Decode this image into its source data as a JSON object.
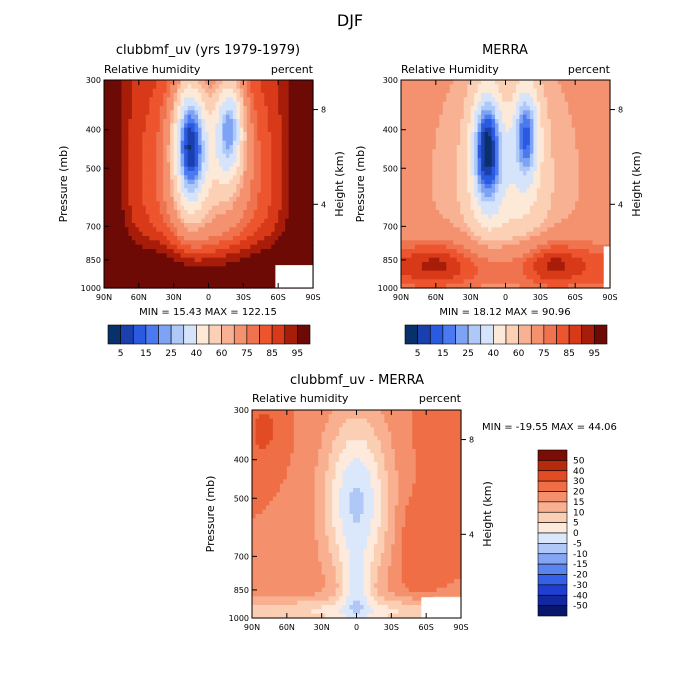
{
  "figure_title": "DJF",
  "chart_data": [
    {
      "type": "heatmap",
      "id": "p1",
      "title": "clubbmf_uv (yrs 1979-1979)",
      "subtitle_left": "Relative humidity",
      "subtitle_right": "percent",
      "xlabel": "",
      "ylabel": "Pressure (mb)",
      "y2label": "Height (km)",
      "x_ticks": [
        "90N",
        "60N",
        "30N",
        "0",
        "30S",
        "60S",
        "90S"
      ],
      "y_ticks": [
        "300",
        "400",
        "500",
        "700",
        "850",
        "1000"
      ],
      "y2_ticks": [
        "8",
        "4"
      ],
      "min_max": "MIN =   15.43   MAX =  122.15",
      "scale": "absolute",
      "color_levels": [
        5,
        15,
        25,
        40,
        60,
        75,
        85,
        95
      ]
    },
    {
      "type": "heatmap",
      "id": "p2",
      "title": "MERRA",
      "subtitle_left": "Relative Humidity",
      "subtitle_right": "percent",
      "xlabel": "",
      "ylabel": "Pressure (mb)",
      "y2label": "Height (km)",
      "x_ticks": [
        "90N",
        "60N",
        "30N",
        "0",
        "30S",
        "60S",
        "90S"
      ],
      "y_ticks": [
        "300",
        "400",
        "500",
        "700",
        "850",
        "1000"
      ],
      "y2_ticks": [
        "8",
        "4"
      ],
      "min_max": "MIN =   18.12   MAX =   90.96",
      "scale": "absolute",
      "color_levels": [
        5,
        15,
        25,
        40,
        60,
        75,
        85,
        95
      ]
    },
    {
      "type": "heatmap",
      "id": "p3",
      "title": "clubbmf_uv - MERRA",
      "subtitle_left": "Relative humidity",
      "subtitle_right": "percent",
      "xlabel": "",
      "ylabel": "Pressure (mb)",
      "y2label": "Height (km)",
      "x_ticks": [
        "90N",
        "60N",
        "30N",
        "0",
        "30S",
        "60S",
        "90S"
      ],
      "y_ticks": [
        "300",
        "400",
        "500",
        "700",
        "850",
        "1000"
      ],
      "y2_ticks": [
        "8",
        "4"
      ],
      "min_max": "MIN = -19.55   MAX =   44.06",
      "scale": "difference",
      "color_levels": [
        50,
        40,
        30,
        20,
        15,
        10,
        5,
        0,
        -5,
        -10,
        -15,
        -20,
        -30,
        -40,
        -50
      ]
    }
  ],
  "colors": {
    "absolute": [
      "#08306b",
      "#1c3fae",
      "#2a5ae0",
      "#4a79f0",
      "#7ea3f5",
      "#aec8f8",
      "#d6e4fb",
      "#fde9d8",
      "#fbd0b4",
      "#f8b293",
      "#f49270",
      "#f0734f",
      "#ed552f",
      "#d83a19",
      "#a71d09",
      "#6e0a06"
    ],
    "difference": [
      "#08176b",
      "#1327a0",
      "#1f3fd0",
      "#3561e8",
      "#5a84ee",
      "#83a5f2",
      "#b0c8f7",
      "#dbe7fb",
      "#fdeadc",
      "#fbcfb3",
      "#f8b090",
      "#f4906c",
      "#ef6e45",
      "#e24c24",
      "#b82a0c",
      "#7a0d05"
    ]
  }
}
